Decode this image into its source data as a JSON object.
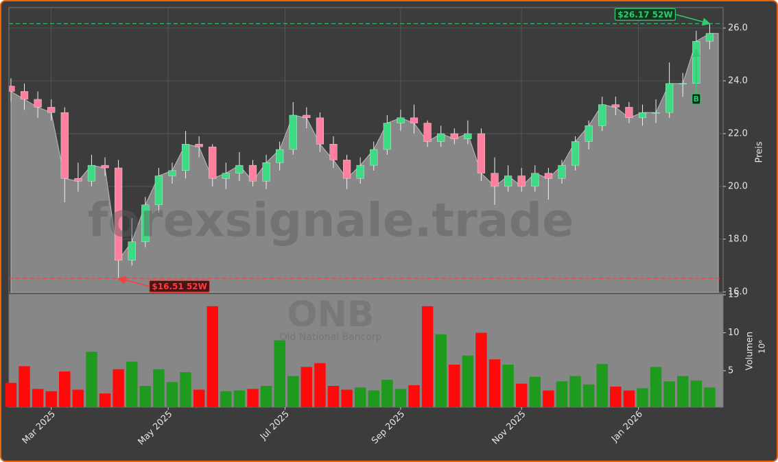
{
  "chart_data": {
    "type": "candlestick",
    "categories": [
      null,
      null,
      null,
      null,
      null,
      null,
      null,
      null,
      null,
      null,
      null,
      null,
      null,
      null,
      null,
      null,
      null,
      null,
      null,
      null,
      null,
      null,
      null,
      null,
      null,
      null,
      null,
      null,
      null,
      null,
      null,
      null,
      null,
      null,
      null,
      null,
      null,
      null,
      null,
      null,
      null,
      null,
      null,
      null,
      null,
      null,
      null,
      null,
      null,
      null,
      null,
      null,
      null
    ],
    "open": [
      23.8,
      23.6,
      23.3,
      23.0,
      22.8,
      20.3,
      20.2,
      20.8,
      20.7,
      17.2,
      17.9,
      19.3,
      20.4,
      20.6,
      21.6,
      21.5,
      20.3,
      20.5,
      20.8,
      20.2,
      20.9,
      21.4,
      22.7,
      22.6,
      21.6,
      21.0,
      20.3,
      20.8,
      21.4,
      22.4,
      22.6,
      22.4,
      21.7,
      22.0,
      21.8,
      22.0,
      20.5,
      20.0,
      20.4,
      20.0,
      20.5,
      20.3,
      20.8,
      21.7,
      22.3,
      23.1,
      23.0,
      22.6,
      22.8,
      22.8,
      23.9,
      23.9,
      25.5
    ],
    "high": [
      24.1,
      23.9,
      23.6,
      23.3,
      23.0,
      20.9,
      21.2,
      21.1,
      21.0,
      18.8,
      19.6,
      20.7,
      20.9,
      22.1,
      21.9,
      21.6,
      20.9,
      21.3,
      21.0,
      21.2,
      21.7,
      23.2,
      23.0,
      22.8,
      21.9,
      21.2,
      21.1,
      21.7,
      22.7,
      22.9,
      23.1,
      22.5,
      22.3,
      22.2,
      22.5,
      22.2,
      21.1,
      20.8,
      20.7,
      20.8,
      20.7,
      21.0,
      21.9,
      22.5,
      23.4,
      23.4,
      23.2,
      23.1,
      23.3,
      24.7,
      24.3,
      25.9,
      26.17
    ],
    "low": [
      23.2,
      22.9,
      22.6,
      22.5,
      19.4,
      19.8,
      20.0,
      20.4,
      16.51,
      17.0,
      17.7,
      19.0,
      20.1,
      20.3,
      21.1,
      20.0,
      19.9,
      20.2,
      20.0,
      19.9,
      20.6,
      21.2,
      22.2,
      21.3,
      20.7,
      19.9,
      20.1,
      20.6,
      21.2,
      22.1,
      22.0,
      21.5,
      21.5,
      21.6,
      21.6,
      20.2,
      19.3,
      19.8,
      19.8,
      19.8,
      19.5,
      20.1,
      20.6,
      21.4,
      22.1,
      22.7,
      22.4,
      22.3,
      22.4,
      22.6,
      23.4,
      23.7,
      25.2
    ],
    "close": [
      23.6,
      23.3,
      23.0,
      22.8,
      20.3,
      20.2,
      20.8,
      20.7,
      17.2,
      17.9,
      19.3,
      20.4,
      20.6,
      21.6,
      21.5,
      20.3,
      20.5,
      20.8,
      20.2,
      20.9,
      21.4,
      22.7,
      22.6,
      21.6,
      21.0,
      20.3,
      20.8,
      21.4,
      22.4,
      22.6,
      22.4,
      21.7,
      22.0,
      21.8,
      22.0,
      20.5,
      20.0,
      20.4,
      20.0,
      20.5,
      20.3,
      20.8,
      21.7,
      22.3,
      23.1,
      23.0,
      22.6,
      22.8,
      22.8,
      23.9,
      23.9,
      25.5,
      25.8
    ],
    "volume": [
      3.4,
      5.6,
      2.6,
      2.3,
      4.9,
      2.5,
      7.5,
      2.0,
      5.2,
      6.2,
      3.0,
      5.2,
      3.5,
      4.8,
      2.5,
      13.5,
      2.3,
      2.4,
      2.6,
      3.0,
      9.0,
      4.3,
      5.5,
      6.0,
      3.0,
      2.5,
      2.8,
      2.4,
      3.8,
      2.6,
      3.1,
      13.5,
      9.8,
      5.8,
      7.0,
      10.0,
      6.5,
      5.8,
      3.3,
      4.2,
      2.4,
      3.6,
      4.3,
      3.2,
      5.9,
      2.9,
      2.4,
      2.7,
      5.5,
      3.6,
      4.3,
      3.7,
      2.8
    ],
    "xlim": [
      -0.15,
      53
    ],
    "xticks": [
      {
        "value": 3.0,
        "label": "Mar 2025"
      },
      {
        "value": 11.7,
        "label": "May 2025"
      },
      {
        "value": 20.4,
        "label": "Jul 2025"
      },
      {
        "value": 29.0,
        "label": "Sep 2025"
      },
      {
        "value": 38.0,
        "label": "Nov 2025"
      },
      {
        "value": 46.7,
        "label": "Jan 2026"
      }
    ],
    "ylim": [
      15.97,
      26.78
    ],
    "yticks": [
      {
        "value": 16,
        "label": "16.0"
      },
      {
        "value": 18,
        "label": "18.0"
      },
      {
        "value": 20,
        "label": "20.0"
      },
      {
        "value": 22,
        "label": "22.0"
      },
      {
        "value": 24,
        "label": "24.0"
      },
      {
        "value": 26,
        "label": "26.0"
      }
    ],
    "ylabel": "Preis",
    "volume_ylim": [
      0.2,
      15.1
    ],
    "volume_yticks": [
      5,
      10,
      15
    ],
    "volume_ylabel": "Volumen",
    "volume_unit": "10⁶",
    "grid": true,
    "up_color": "#3ddc84",
    "down_color": "#ff7f9f",
    "volume_up_color": "#1e9a1e",
    "volume_down_color": "#ff0a0a",
    "area_color": "#878787",
    "annotations": [
      {
        "value": 26.17,
        "label": "$26.17 52W",
        "x": 52,
        "color": "#2ecc71"
      },
      {
        "value": 16.51,
        "label": "$16.51 52W",
        "x": 8,
        "color": "#ff3b3b"
      }
    ],
    "signals": [
      {
        "label": "B",
        "x": 51,
        "value": 23.3
      }
    ],
    "watermark": "forexsignale.trade",
    "symbol": "ONB",
    "company": "Old National Bancorp"
  }
}
